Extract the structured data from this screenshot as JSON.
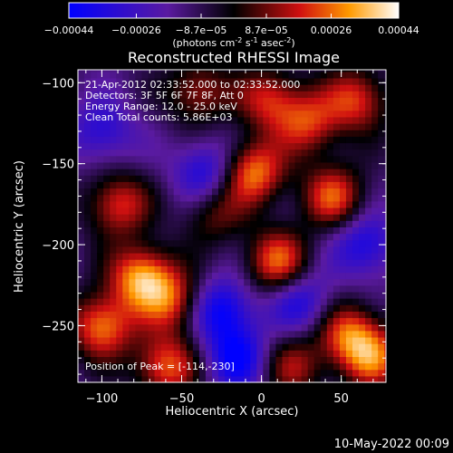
{
  "colorbar": {
    "ticks": [
      "-0.00044",
      "-0.00026",
      "-8.7e-05",
      "8.7e-05",
      "0.00026",
      "0.00044"
    ],
    "unit_label": "(photons cm",
    "unit_exp1": "-2",
    "unit_s": " s",
    "unit_exp2": "-1",
    "unit_asec": " asec",
    "unit_exp3": "-2",
    "unit_close": ")",
    "range": [
      -0.00044,
      0.00044
    ]
  },
  "footer": {
    "timestamp": "10-May-2022 00:09"
  },
  "chart_data": {
    "type": "heatmap",
    "title": "Reconstructed RHESSI Image",
    "xlabel": "Heliocentric X (arcsec)",
    "ylabel": "Heliocentric Y (arcsec)",
    "xlim": [
      -115,
      78
    ],
    "ylim": [
      -285,
      -92
    ],
    "x_ticks": [
      -100,
      -50,
      0,
      50
    ],
    "y_ticks": [
      -100,
      -150,
      -200,
      -250
    ],
    "x_tick_labels": [
      "−100",
      "−50",
      "0",
      "50"
    ],
    "y_tick_labels": [
      "−100",
      "−150",
      "−200",
      "−250"
    ],
    "annotations": [
      "21-Apr-2012 02:33:52.000 to 02:33:52.000",
      "Detectors: 3F 5F 6F 7F 8F, Att 0",
      "Energy Range: 12.0 - 25.0 keV",
      "Clean    Total counts: 5.86E+03"
    ],
    "peak_label": "Position of Peak = [-114,-230]",
    "peak": [
      -114,
      -230
    ],
    "colormap": "blue-purple-red-yellow-white",
    "sources": [
      {
        "x": -75,
        "y": -220,
        "value": 0.00044
      },
      {
        "x": -100,
        "y": -250,
        "value": 0.0004
      },
      {
        "x": -90,
        "y": -175,
        "value": 0.00032
      },
      {
        "x": -60,
        "y": -275,
        "value": 0.00036
      },
      {
        "x": -5,
        "y": -155,
        "value": 0.0004
      },
      {
        "x": 10,
        "y": -210,
        "value": 0.00036
      },
      {
        "x": 5,
        "y": -110,
        "value": 0.0003
      },
      {
        "x": 45,
        "y": -170,
        "value": 0.00034
      },
      {
        "x": 30,
        "y": -125,
        "value": 0.0003
      },
      {
        "x": 60,
        "y": -110,
        "value": 0.00032
      },
      {
        "x": 55,
        "y": -255,
        "value": 0.00034
      },
      {
        "x": 70,
        "y": -270,
        "value": 0.00032
      },
      {
        "x": -40,
        "y": -105,
        "value": 0.00026
      },
      {
        "x": -55,
        "y": -235,
        "value": 0.0003
      },
      {
        "x": 20,
        "y": -275,
        "value": 0.00024
      },
      {
        "x": -30,
        "y": -180,
        "value": 0.0002
      }
    ],
    "dips": [
      {
        "x": -25,
        "y": -240,
        "value": -0.00032
      },
      {
        "x": -15,
        "y": -270,
        "value": -0.0003
      },
      {
        "x": -35,
        "y": -155,
        "value": -0.00026
      },
      {
        "x": -100,
        "y": -130,
        "value": -0.00022
      },
      {
        "x": 65,
        "y": -200,
        "value": -0.00026
      },
      {
        "x": 25,
        "y": -235,
        "value": -0.00024
      }
    ]
  }
}
